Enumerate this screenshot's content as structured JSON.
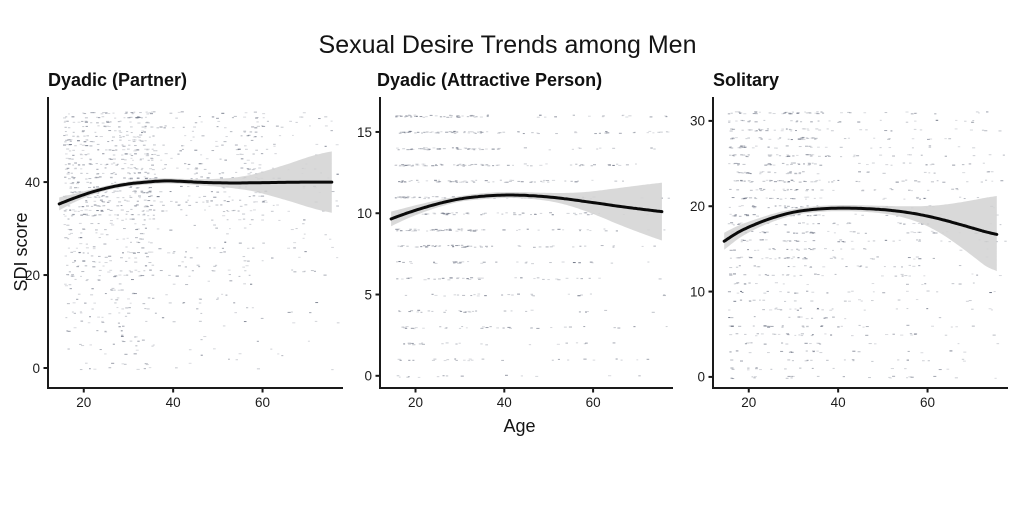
{
  "figure": {
    "title": "Sexual Desire Trends among Men",
    "xlabel": "Age",
    "ylabel": "SDI score"
  },
  "chart_data": {
    "type": "scatter",
    "subtype": "jittered points with loess smooth trend line and confidence ribbon, three facets",
    "title": "Sexual Desire Trends among Men",
    "xlabel": "Age",
    "ylabel": "SDI score",
    "legend": "none",
    "grid": "off",
    "x_axis": {
      "range": [
        12,
        78
      ],
      "ticks": [
        20,
        40,
        60
      ],
      "tick_labels": [
        "20",
        "40",
        "60"
      ]
    },
    "colors": {
      "background": "#ffffff",
      "trend_line": "#0b0b0b",
      "ci_band": "#d4d4d4",
      "scatter_point": "#5f6678",
      "axis": "#1a1a1a",
      "text": "#141414"
    },
    "trend_ages": [
      14.5,
      18,
      22,
      26,
      30,
      34,
      38,
      42,
      46,
      50,
      54,
      58,
      62,
      66,
      70,
      73,
      75.5
    ],
    "age_model": {
      "young_frac": 0.55,
      "young_min": 15.5,
      "young_span": 20,
      "mid_frac": 0.33,
      "mid_min": 28,
      "mid_span": 32,
      "old_min": 55,
      "old_span": 22
    },
    "panels": [
      {
        "title": "Dyadic (Partner)",
        "ylim": [
          -4.3,
          58.3
        ],
        "yticks": [
          0,
          20,
          40
        ],
        "ytick_labels": [
          "0",
          "20",
          "40"
        ],
        "trend_values": [
          35.3,
          36.6,
          37.9,
          38.9,
          39.6,
          40.0,
          40.25,
          40.15,
          39.95,
          39.85,
          39.8,
          39.85,
          39.9,
          39.95,
          40.0,
          40.0,
          40.0
        ],
        "ci_upper": [
          36.7,
          37.5,
          38.5,
          39.4,
          40.1,
          40.55,
          40.8,
          40.7,
          40.6,
          40.7,
          41.0,
          41.7,
          42.8,
          44.0,
          45.3,
          46.1,
          46.6
        ],
        "ci_lower": [
          33.9,
          35.7,
          37.3,
          38.4,
          39.1,
          39.45,
          39.7,
          39.6,
          39.3,
          39.0,
          38.6,
          38.0,
          37.0,
          35.9,
          34.7,
          33.9,
          33.4
        ],
        "scatter": {
          "n": 1150,
          "score_rows": [
            0,
            55
          ],
          "row_weight_tiers": [
            [
              44,
              0.75
            ],
            [
              33,
              1.0
            ],
            [
              20,
              0.45
            ],
            [
              10,
              0.28
            ],
            [
              0,
              0.15
            ]
          ],
          "age_min": 15.5,
          "age_max": 77
        }
      },
      {
        "title": "Dyadic (Attractive Person)",
        "ylim": [
          -0.75,
          17.15
        ],
        "yticks": [
          0,
          5,
          10,
          15
        ],
        "ytick_labels": [
          "0",
          "5",
          "10",
          "15"
        ],
        "trend_values": [
          9.65,
          10.0,
          10.35,
          10.65,
          10.88,
          11.02,
          11.1,
          11.12,
          11.08,
          11.0,
          10.88,
          10.73,
          10.58,
          10.42,
          10.28,
          10.18,
          10.1
        ],
        "ci_upper": [
          10.1,
          10.35,
          10.62,
          10.86,
          11.05,
          11.2,
          11.28,
          11.3,
          11.28,
          11.25,
          11.25,
          11.3,
          11.42,
          11.56,
          11.7,
          11.8,
          11.88
        ],
        "ci_lower": [
          9.2,
          9.65,
          10.08,
          10.44,
          10.71,
          10.84,
          10.92,
          10.94,
          10.88,
          10.75,
          10.51,
          10.16,
          9.74,
          9.28,
          8.86,
          8.56,
          8.32
        ],
        "scatter": {
          "n": 800,
          "score_rows": [
            0,
            16
          ],
          "row_weight_tiers": [
            [
              10,
              1.0
            ],
            [
              8,
              0.75
            ],
            [
              3,
              0.5
            ],
            [
              0,
              0.32
            ]
          ],
          "age_min": 15.5,
          "age_max": 77
        }
      },
      {
        "title": "Solitary",
        "ylim": [
          -1.3,
          32.8
        ],
        "yticks": [
          0,
          10,
          20,
          30
        ],
        "ytick_labels": [
          "0",
          "10",
          "20",
          "30"
        ],
        "trend_values": [
          15.9,
          17.05,
          18.0,
          18.75,
          19.3,
          19.6,
          19.75,
          19.78,
          19.72,
          19.6,
          19.38,
          19.05,
          18.6,
          18.05,
          17.45,
          17.0,
          16.7
        ],
        "ci_upper": [
          16.9,
          17.8,
          18.55,
          19.2,
          19.65,
          19.95,
          20.1,
          20.15,
          20.1,
          20.05,
          20.0,
          20.0,
          20.1,
          20.35,
          20.7,
          21.0,
          21.2
        ],
        "ci_lower": [
          14.9,
          16.3,
          17.45,
          18.3,
          18.95,
          19.25,
          19.4,
          19.41,
          19.34,
          19.15,
          18.76,
          18.1,
          17.1,
          15.75,
          14.2,
          13.0,
          12.4
        ],
        "scatter": {
          "n": 1000,
          "score_rows": [
            0,
            31
          ],
          "row_weight_tiers": [
            [
              16,
              1.0
            ],
            [
              10,
              0.65
            ],
            [
              5,
              0.55
            ],
            [
              0,
              0.45
            ]
          ],
          "age_min": 15.5,
          "age_max": 77
        }
      }
    ]
  }
}
